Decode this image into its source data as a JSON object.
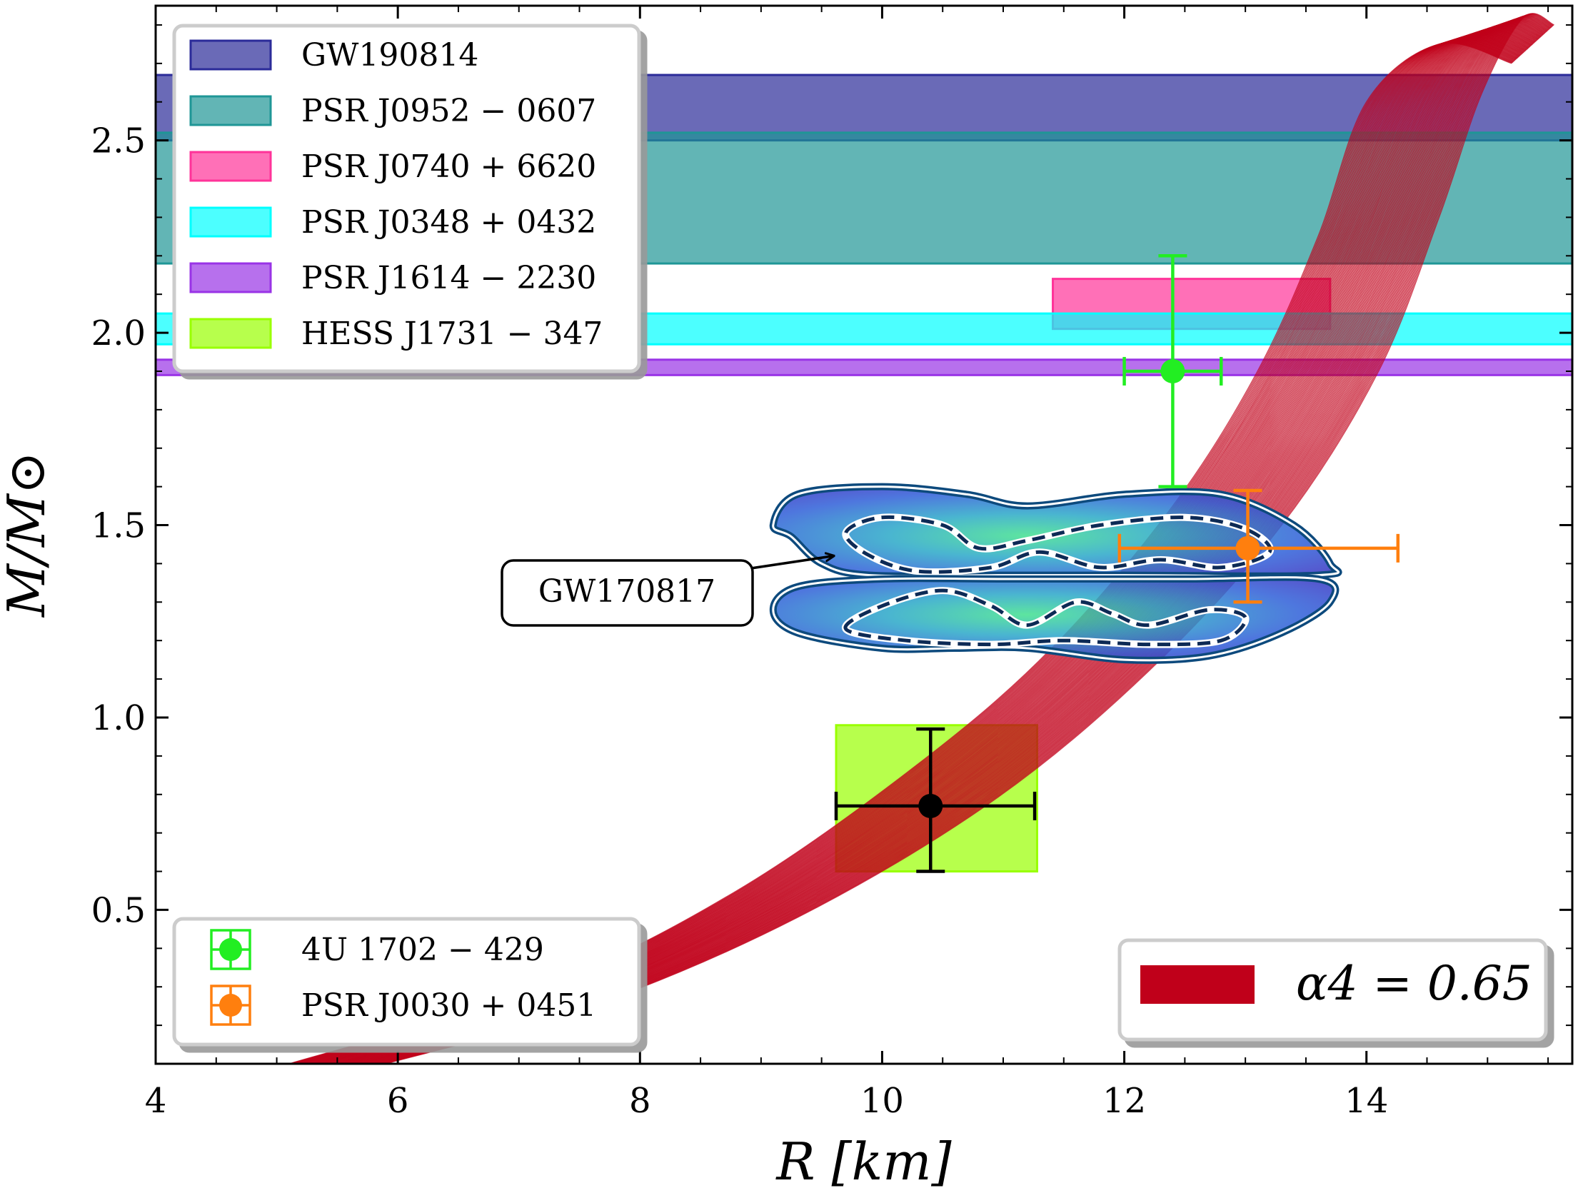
{
  "chart_data": {
    "type": "scatter",
    "xlabel": "R [km]",
    "ylabel": "M/M⊙",
    "xlim": [
      4,
      15.7
    ],
    "ylim": [
      0.1,
      2.85
    ],
    "x_ticks": [
      {
        "value": 4,
        "label": "4"
      },
      {
        "value": 6,
        "label": "6"
      },
      {
        "value": 8,
        "label": "8"
      },
      {
        "value": 10,
        "label": "10"
      },
      {
        "value": 12,
        "label": "12"
      },
      {
        "value": 14,
        "label": "14"
      }
    ],
    "y_ticks": [
      {
        "value": 0.5,
        "label": "0.5"
      },
      {
        "value": 1.0,
        "label": "1.0"
      },
      {
        "value": 1.5,
        "label": "1.5"
      },
      {
        "value": 2.0,
        "label": "2.0"
      },
      {
        "value": 2.5,
        "label": "2.5"
      }
    ],
    "mass_bands": [
      {
        "name": "GW190814",
        "label": "GW190814",
        "xmin": 4,
        "xmax": 15.7,
        "ymin": 2.5,
        "ymax": 2.67,
        "color": "#2b2b99"
      },
      {
        "name": "PSR J0952-0607",
        "label": "PSR J0952 − 0607",
        "xmin": 4,
        "xmax": 15.7,
        "ymin": 2.18,
        "ymax": 2.52,
        "color": "#1f9696"
      },
      {
        "name": "PSR J0740+6620",
        "label": "PSR J0740 + 6620",
        "xmin": 11.41,
        "xmax": 13.7,
        "ymin": 2.01,
        "ymax": 2.14,
        "color": "#ff3399"
      },
      {
        "name": "PSR J0348+0432",
        "label": "PSR J0348 + 0432",
        "xmin": 4,
        "xmax": 15.7,
        "ymin": 1.97,
        "ymax": 2.05,
        "color": "#00ffff"
      },
      {
        "name": "PSR J1614-2230",
        "label": "PSR J1614 − 2230",
        "xmin": 4,
        "xmax": 15.7,
        "ymin": 1.89,
        "ymax": 1.93,
        "color": "#9933e6"
      },
      {
        "name": "HESS J1731-347",
        "label": "HESS J1731 − 347",
        "xmin": 9.62,
        "xmax": 11.28,
        "ymin": 0.6,
        "ymax": 0.98,
        "color": "#99ff00"
      }
    ],
    "points": [
      {
        "name": "4U 1702-429",
        "label": "4U 1702 − 429",
        "x": 12.4,
        "y": 1.9,
        "xerr": [
          0.4,
          0.4
        ],
        "yerr": [
          0.3,
          0.3
        ],
        "color": "#22ee22"
      },
      {
        "name": "PSR J0030+0451",
        "label": "PSR J0030 + 0451",
        "x": 13.02,
        "y": 1.44,
        "xerr": [
          1.06,
          1.24
        ],
        "yerr": [
          0.14,
          0.15
        ],
        "color": "#ff7f0e"
      },
      {
        "name": "HESS J1731-347",
        "x": 10.4,
        "y": 0.77,
        "xerr": [
          0.78,
          0.86
        ],
        "yerr": [
          0.17,
          0.2
        ],
        "color": "#000000"
      }
    ],
    "eos_family": {
      "label": "α4 = 0.65",
      "color": "#c0001a",
      "curve_count": 100,
      "lower_edge": [
        [
          5.1,
          0.1
        ],
        [
          7.2,
          0.3
        ],
        [
          8.8,
          0.55
        ],
        [
          10.3,
          0.88
        ],
        [
          11.4,
          1.18
        ],
        [
          12.4,
          1.55
        ],
        [
          13.1,
          1.9
        ],
        [
          13.6,
          2.25
        ],
        [
          14.0,
          2.6
        ],
        [
          14.6,
          2.75
        ],
        [
          15.2,
          2.7
        ]
      ],
      "upper_edge": [
        [
          5.9,
          0.1
        ],
        [
          7.6,
          0.25
        ],
        [
          9.3,
          0.48
        ],
        [
          10.9,
          0.78
        ],
        [
          12.2,
          1.12
        ],
        [
          13.3,
          1.5
        ],
        [
          14.1,
          1.9
        ],
        [
          14.6,
          2.3
        ],
        [
          14.95,
          2.62
        ],
        [
          15.3,
          2.82
        ],
        [
          15.55,
          2.8
        ]
      ]
    },
    "gw170817_contours": {
      "annotation": "GW170817",
      "annotation_xy": [
        9.6,
        1.42
      ],
      "upper_lobe_outer": [
        [
          9.1,
          1.5
        ],
        [
          9.3,
          1.58
        ],
        [
          10,
          1.6
        ],
        [
          10.7,
          1.58
        ],
        [
          11.2,
          1.55
        ],
        [
          12,
          1.58
        ],
        [
          12.8,
          1.58
        ],
        [
          13.4,
          1.5
        ],
        [
          13.7,
          1.4
        ],
        [
          13.6,
          1.37
        ],
        [
          12,
          1.37
        ],
        [
          11,
          1.37
        ],
        [
          9.9,
          1.37
        ],
        [
          9.5,
          1.4
        ],
        [
          9.25,
          1.47
        ]
      ],
      "upper_lobe_dashed": [
        [
          9.7,
          1.48
        ],
        [
          10,
          1.52
        ],
        [
          10.5,
          1.5
        ],
        [
          10.8,
          1.44
        ],
        [
          11.2,
          1.46
        ],
        [
          11.8,
          1.5
        ],
        [
          12.5,
          1.52
        ],
        [
          13.0,
          1.49
        ],
        [
          13.2,
          1.43
        ],
        [
          12.8,
          1.39
        ],
        [
          12.3,
          1.41
        ],
        [
          11.8,
          1.39
        ],
        [
          11.3,
          1.43
        ],
        [
          10.9,
          1.39
        ],
        [
          10.3,
          1.38
        ],
        [
          9.9,
          1.42
        ]
      ],
      "lower_lobe_outer": [
        [
          9.1,
          1.28
        ],
        [
          9.3,
          1.34
        ],
        [
          10,
          1.36
        ],
        [
          11,
          1.36
        ],
        [
          12.5,
          1.36
        ],
        [
          13.6,
          1.36
        ],
        [
          13.7,
          1.3
        ],
        [
          13.3,
          1.22
        ],
        [
          12.7,
          1.16
        ],
        [
          12,
          1.15
        ],
        [
          11.2,
          1.18
        ],
        [
          10.6,
          1.18
        ],
        [
          10,
          1.18
        ],
        [
          9.3,
          1.22
        ]
      ],
      "lower_lobe_dashed": [
        [
          9.7,
          1.23
        ],
        [
          10,
          1.29
        ],
        [
          10.5,
          1.33
        ],
        [
          10.9,
          1.29
        ],
        [
          11.2,
          1.24
        ],
        [
          11.6,
          1.3
        ],
        [
          11.9,
          1.27
        ],
        [
          12.2,
          1.24
        ],
        [
          12.7,
          1.28
        ],
        [
          13.0,
          1.26
        ],
        [
          12.8,
          1.2
        ],
        [
          12.2,
          1.19
        ],
        [
          11.5,
          1.2
        ],
        [
          10.9,
          1.19
        ],
        [
          10.2,
          1.2
        ]
      ]
    },
    "legends": {
      "bands_location": "upper-left",
      "points_location": "lower-left",
      "eos_location": "lower-right"
    }
  }
}
